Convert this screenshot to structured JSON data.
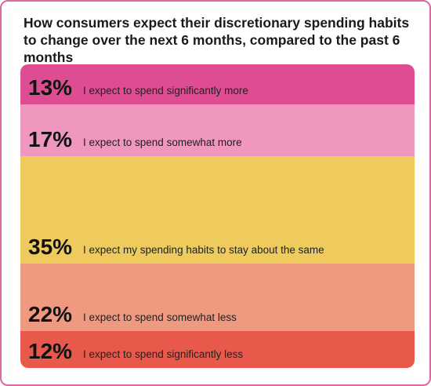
{
  "title": "How consumers expect their discretionary spending habits to change over the next 6 months, compared to the past 6 months",
  "chart_data": {
    "type": "bar",
    "stacked": true,
    "orientation": "vertical-100%",
    "title": "How consumers expect their discretionary spending habits to change over the next 6 months, compared to the past 6 months",
    "segments": [
      {
        "value": 13,
        "value_label": "13%",
        "label": "I expect to spend significantly more",
        "color": "#de4d92"
      },
      {
        "value": 17,
        "value_label": "17%",
        "label": "I expect to spend somewhat more",
        "color": "#ef97bf"
      },
      {
        "value": 35,
        "value_label": "35%",
        "label": "I expect my spending habits to stay about the same",
        "color": "#eecb5c"
      },
      {
        "value": 22,
        "value_label": "22%",
        "label": "I expect to spend somewhat less",
        "color": "#ef9a80"
      },
      {
        "value": 12,
        "value_label": "12%",
        "label": "I expect to spend significantly less",
        "color": "#e9594b"
      }
    ]
  }
}
